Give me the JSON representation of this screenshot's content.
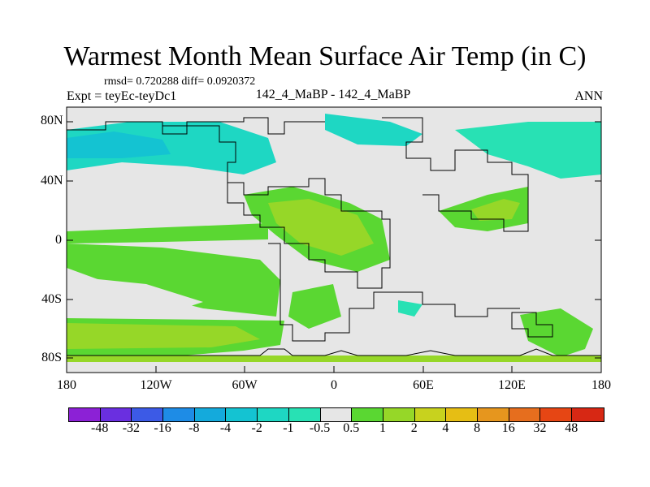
{
  "title": "Warmest Month Mean Surface Air Temp (in C)",
  "stats": "rmsd= 0.720288 diff= 0.0920372",
  "experiment": "Expt = teyEc-teyDc1",
  "center_label": "142_4_MaBP - 142_4_MaBP",
  "season": "ANN",
  "lat_labels": [
    "80N",
    "40N",
    "0",
    "40S",
    "80S"
  ],
  "lon_labels": [
    "180",
    "120W",
    "60W",
    "0",
    "60E",
    "120E",
    "180"
  ],
  "colorbar": {
    "labels": [
      "-48",
      "-32",
      "-16",
      "-8",
      "-4",
      "-2",
      "-1",
      "-0.5",
      "0.5",
      "1",
      "2",
      "4",
      "8",
      "16",
      "32",
      "48"
    ],
    "colors": [
      "#8c21d6",
      "#6a2fe0",
      "#3c5ae6",
      "#1e8ce6",
      "#14aadc",
      "#14c3d2",
      "#1ed7c3",
      "#28e1b4",
      "#e6e6e6",
      "#5ad732",
      "#96d728",
      "#c8d21e",
      "#e6be14",
      "#e6961e",
      "#e66e1e",
      "#e64614",
      "#d72814"
    ]
  },
  "colors": {
    "neutral": "#e6e6e6",
    "ocean_cold": "#1ed7c3",
    "ocean_cool": "#28e1b4",
    "ocean_cyan": "#14c3d2",
    "warm1": "#5ad732",
    "warm2": "#96d728",
    "warm3": "#c8d21e"
  }
}
